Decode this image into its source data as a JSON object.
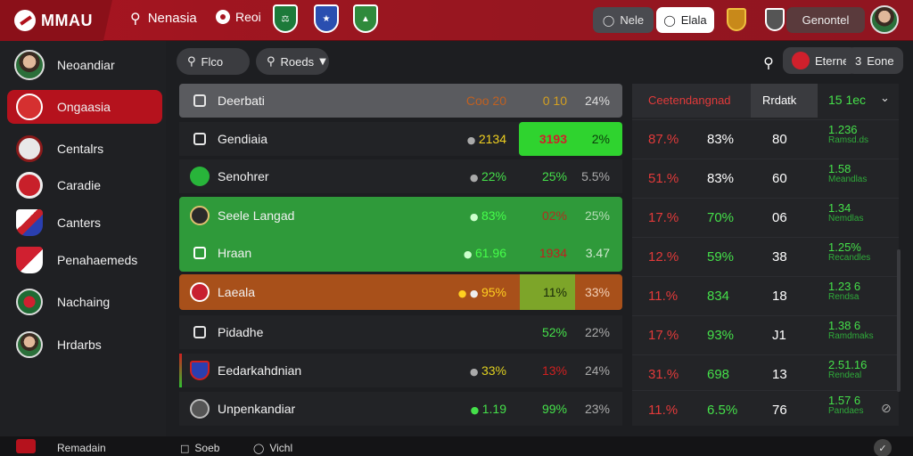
{
  "app": {
    "logo": "MMAU"
  },
  "topbar": {
    "search_label": "Nenasia",
    "nav_item": "Reoi",
    "pill_left": "Nele",
    "pill_right": "Elala",
    "right_button": "Genontel"
  },
  "sidebar": {
    "profile": "Neoandiar",
    "items": [
      {
        "label": "Ongaasia"
      },
      {
        "label": "Centalrs"
      },
      {
        "label": "Caradie"
      },
      {
        "label": "Canters"
      },
      {
        "label": "Penahaemeds"
      },
      {
        "label": "Nachaing"
      },
      {
        "label": "Hrdarbs"
      }
    ]
  },
  "toolbar": {
    "filter1": "Flco",
    "filter2": "Roeds",
    "right_btn1": "Eterne",
    "right_btn2": "Eone",
    "right_btn2_prefix": "3"
  },
  "left_table": {
    "header": {
      "name": "Deerbati",
      "c1": "Coo 20",
      "c2": "0 10",
      "c3": "24%"
    },
    "rows": [
      {
        "name": "Gendiaia",
        "c1": "2134",
        "c2": "3193",
        "c3": "2%"
      },
      {
        "name": "Senohrer",
        "c1": "22%",
        "c2": "25%",
        "c3": "5.5%"
      },
      {
        "name": "Seele Langad",
        "c1": "83%",
        "c2": "02%",
        "c3": "25%"
      },
      {
        "name": "Hraan",
        "c1": "61.96",
        "c2": "1934",
        "c3": "3.47"
      },
      {
        "name": "Laeala",
        "c1": "95%",
        "c2": "11%",
        "c3": "33%"
      },
      {
        "name": "Pidadhe",
        "c1": "",
        "c2": "52%",
        "c3": "22%"
      },
      {
        "name": "Eedarkahdnian",
        "c1": "33%",
        "c2": "13%",
        "c3": "24%"
      },
      {
        "name": "Unpenkandiar",
        "c1": "1.19",
        "c2": "99%",
        "c3": "23%"
      }
    ]
  },
  "right_table": {
    "header": {
      "c1": "Ceetendangnad",
      "c2": "Rrdatk",
      "c3": "15 1ec"
    },
    "rows": [
      {
        "c1": "87.%",
        "c2": "83%",
        "c3": "80",
        "c4a": "1.236",
        "c4b": "Ramsd.ds"
      },
      {
        "c1": "51.%",
        "c2": "83%",
        "c3": "60",
        "c4a": "1.58",
        "c4b": "Meandlas"
      },
      {
        "c1": "17.%",
        "c2": "70%",
        "c3": "06",
        "c4a": "1.34",
        "c4b": "Nemdlas"
      },
      {
        "c1": "12.%",
        "c2": "59%",
        "c3": "38",
        "c4a": "1.25%",
        "c4b": "Recandles"
      },
      {
        "c1": "11.%",
        "c2": "834",
        "c3": "18",
        "c4a": "1.23 6",
        "c4b": "Rendsa"
      },
      {
        "c1": "17.%",
        "c2": "93%",
        "c3": "J1",
        "c4a": "1.38 6",
        "c4b": "Ramdmaks"
      },
      {
        "c1": "31.%",
        "c2": "698",
        "c3": "13",
        "c4a": "2.51.16",
        "c4b": "Rendeal"
      },
      {
        "c1": "11.%",
        "c2": "6.5%",
        "c3": "76",
        "c4a": "1.57 6",
        "c4b": "Pandaes"
      }
    ]
  },
  "bottombar": {
    "title": "Remadain",
    "item1": "Soeb",
    "item2": "Vichl"
  },
  "colors": {
    "brand_red": "#a81420",
    "positive_green": "#45e04a",
    "negative_red": "#e23a3a",
    "highlight_green": "#2fd32f"
  }
}
